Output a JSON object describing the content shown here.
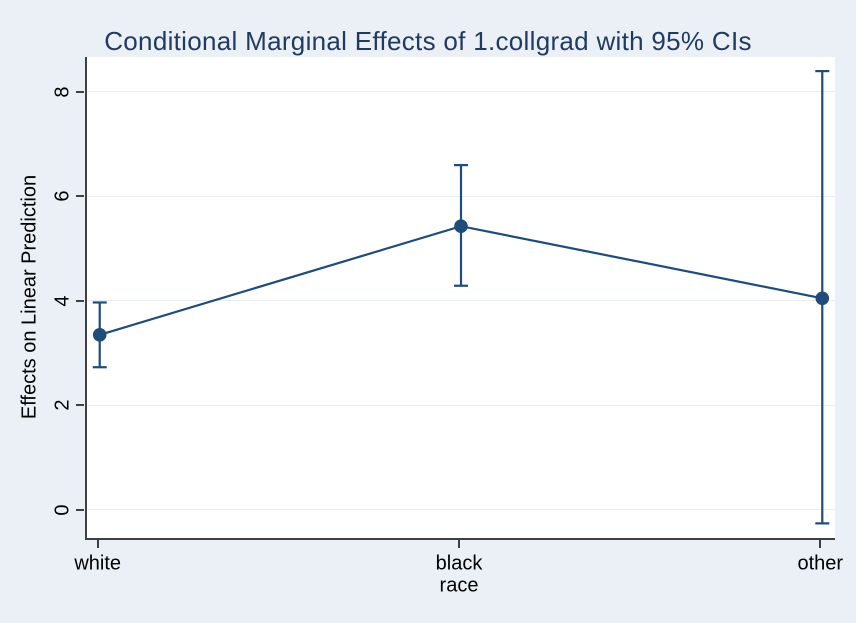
{
  "chart_data": {
    "type": "line",
    "subtype": "point-estimates-with-ci",
    "title": "Conditional Marginal Effects of 1.collgrad with 95% CIs",
    "xlabel": "race",
    "ylabel": "Effects on Linear Prediction",
    "categories": [
      "white",
      "black",
      "other"
    ],
    "series": [
      {
        "name": "Effects of 1.collgrad",
        "values": [
          3.35,
          5.43,
          4.05
        ],
        "ci_low": [
          2.73,
          4.29,
          -0.26
        ],
        "ci_high": [
          3.97,
          6.6,
          8.4
        ]
      }
    ],
    "yticks": [
      0,
      2,
      4,
      6,
      8
    ],
    "ylim": [
      -0.54,
      8.67
    ],
    "grid": true,
    "legend": "none",
    "colors": {
      "background": "#eaf0f6",
      "plot_background": "#ffffff",
      "gridline": "#e8eef4",
      "axis_line": "#404040",
      "tick_text": "#000000",
      "title_text": "#233a60",
      "series": "#1f4c78"
    }
  }
}
